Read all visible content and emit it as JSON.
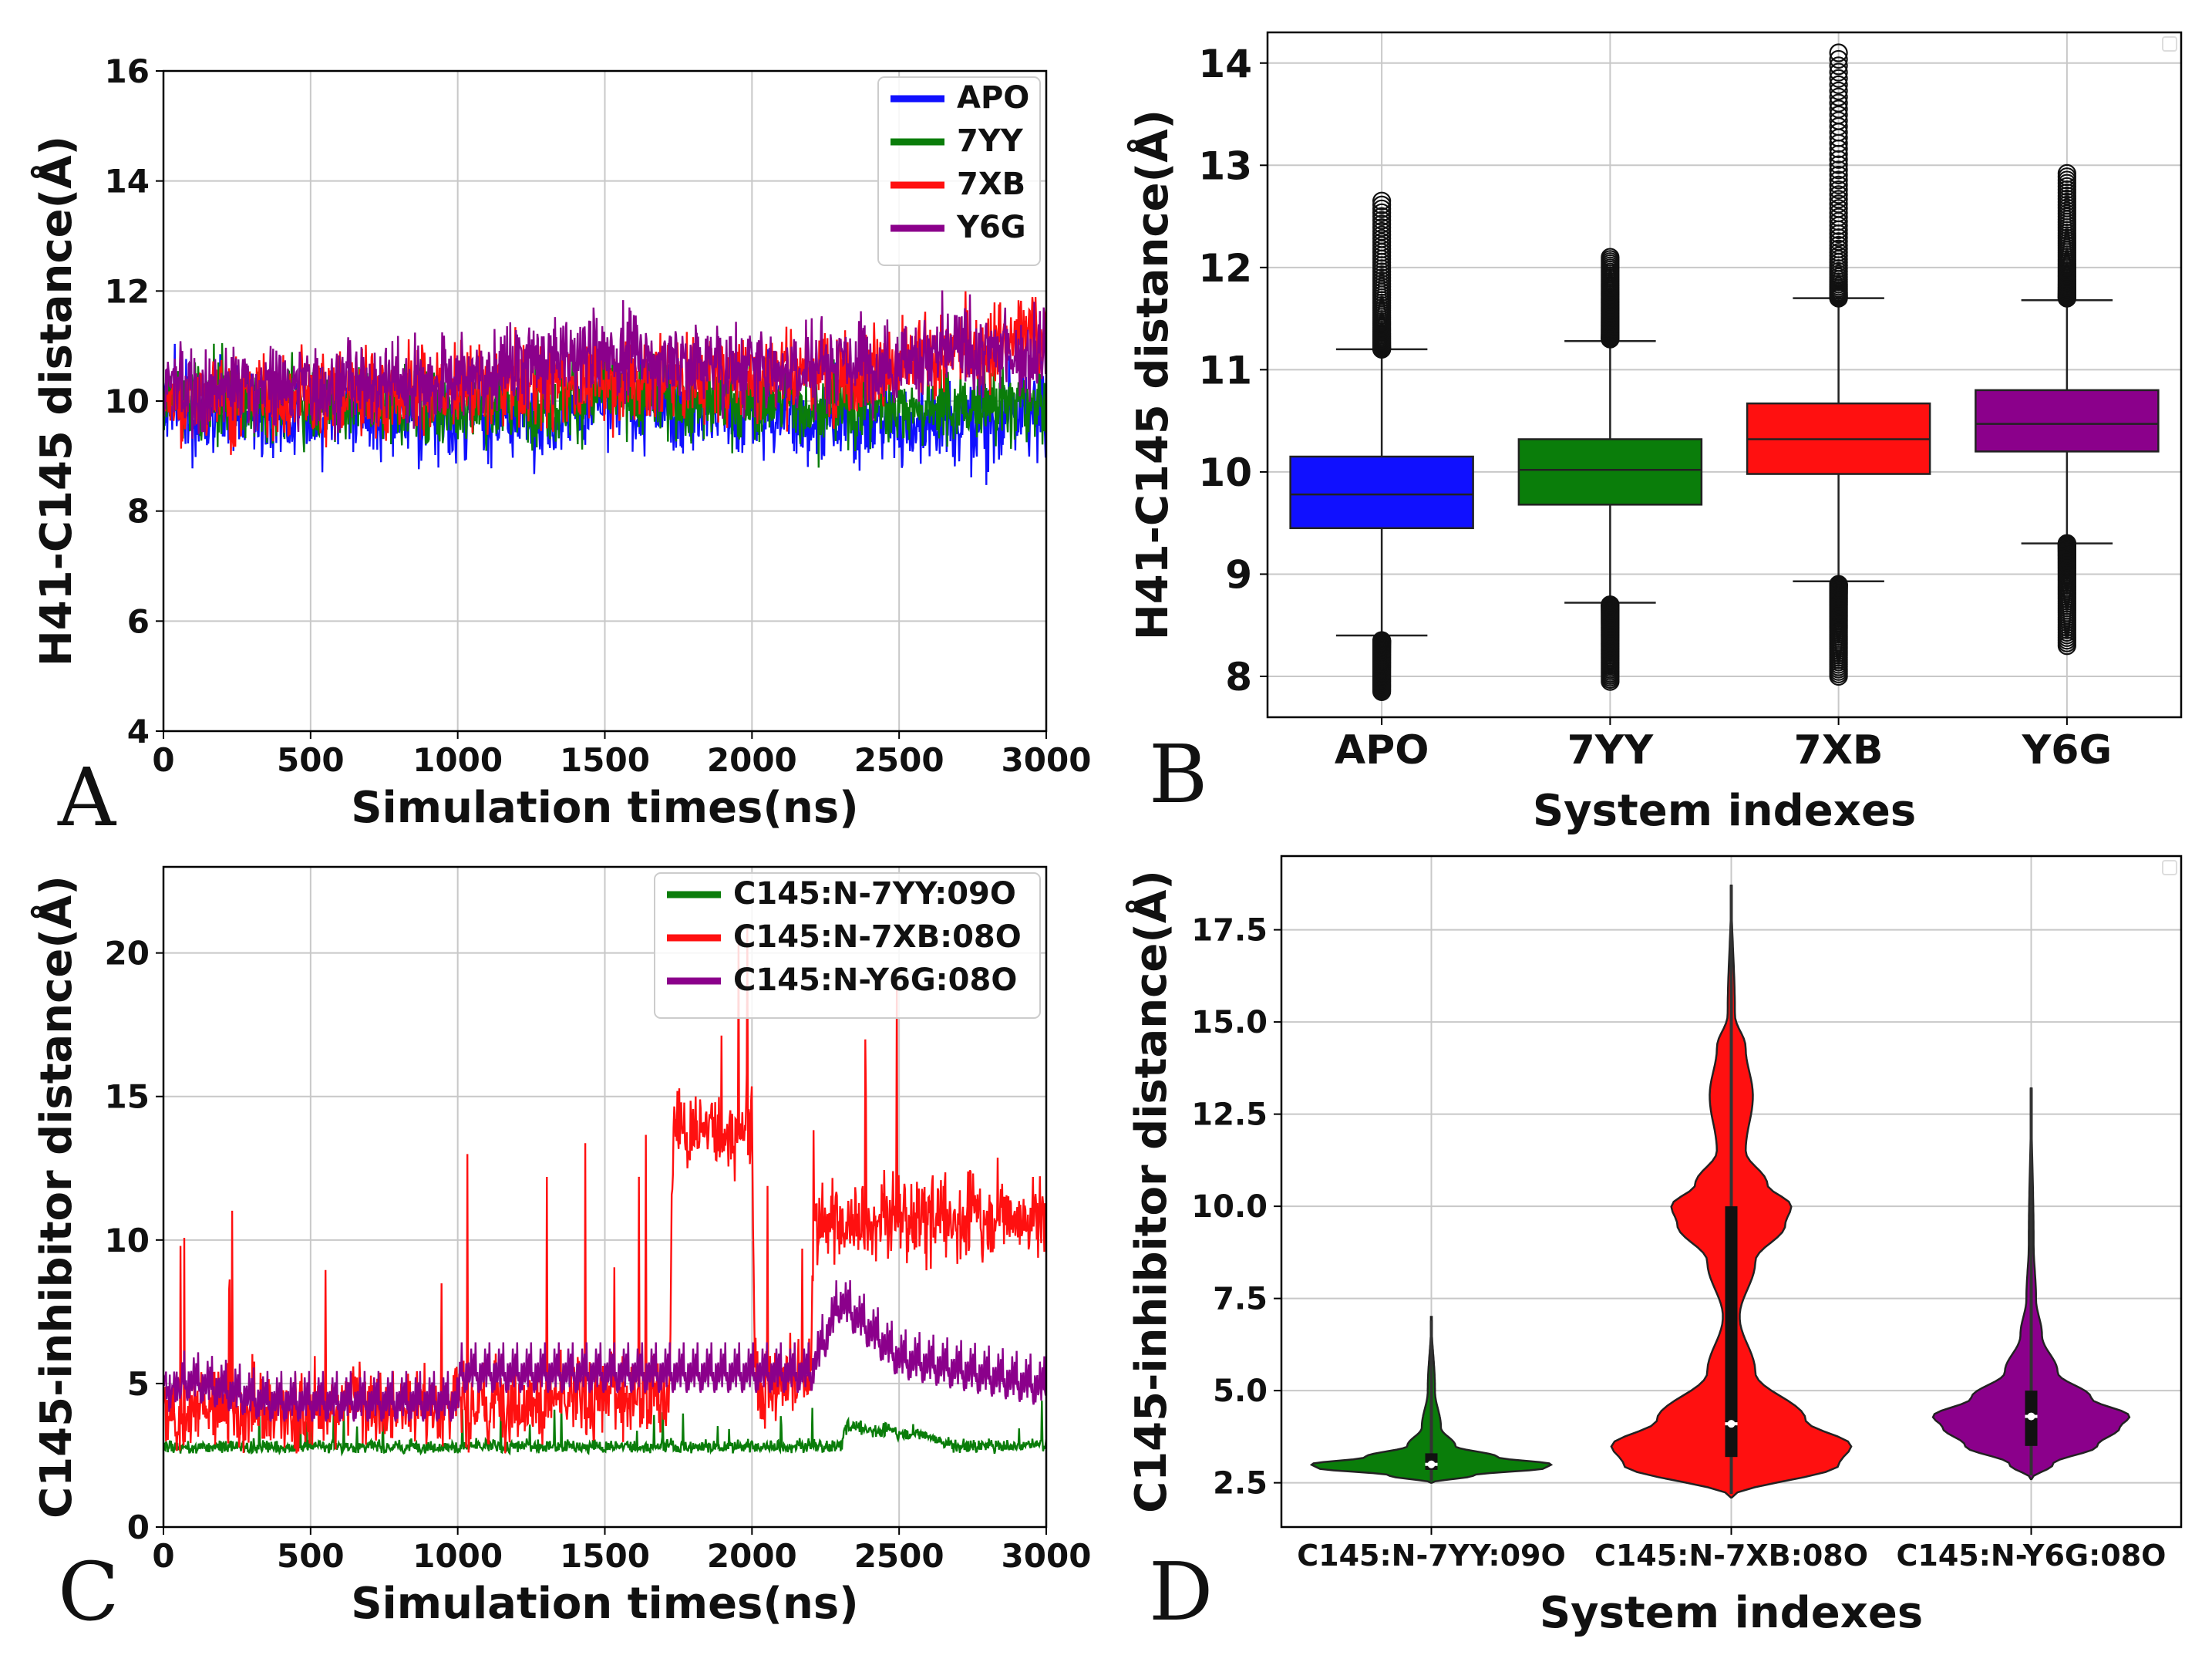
{
  "figure": {
    "colors": {
      "apo": "#1010ff",
      "yy7": "#0a7d0a",
      "xb7": "#ff1010",
      "y6g": "#8b008b",
      "grid": "#c8c8c8"
    }
  },
  "chart_data": [
    {
      "panel": "A",
      "type": "line",
      "xlabel": "Simulation times(ns)",
      "ylabel": "H41-C145 distance(Å)",
      "xlim": [
        0,
        3000
      ],
      "ylim": [
        4,
        16
      ],
      "xticks": [
        "0",
        "500",
        "1000",
        "1500",
        "2000",
        "2500",
        "3000"
      ],
      "yticks": [
        "4",
        "6",
        "8",
        "10",
        "12",
        "14",
        "16"
      ],
      "legend_position": "top-right",
      "series": [
        {
          "name": "APO",
          "color": "#1010ff",
          "mean_segments": [
            [
              0,
              9.9
            ],
            [
              500,
              9.8
            ],
            [
              1000,
              9.7
            ],
            [
              1500,
              9.9
            ],
            [
              2000,
              9.8
            ],
            [
              2500,
              9.6
            ],
            [
              3000,
              9.7
            ]
          ],
          "spread": 1.0
        },
        {
          "name": "7YY",
          "color": "#0a7d0a",
          "mean_segments": [
            [
              0,
              10.0
            ],
            [
              500,
              10.0
            ],
            [
              1000,
              9.9
            ],
            [
              1500,
              10.1
            ],
            [
              2000,
              10.0
            ],
            [
              2500,
              9.9
            ],
            [
              3000,
              9.9
            ]
          ],
          "spread": 0.9
        },
        {
          "name": "7XB",
          "color": "#ff1010",
          "mean_segments": [
            [
              0,
              10.0
            ],
            [
              500,
              10.1
            ],
            [
              1000,
              10.2
            ],
            [
              1500,
              10.4
            ],
            [
              2000,
              10.5
            ],
            [
              2500,
              10.6
            ],
            [
              3000,
              11.3
            ]
          ],
          "spread": 1.0
        },
        {
          "name": "Y6G",
          "color": "#8b008b",
          "mean_segments": [
            [
              0,
              10.2
            ],
            [
              500,
              10.3
            ],
            [
              1000,
              10.4
            ],
            [
              1500,
              10.9
            ],
            [
              2000,
              10.6
            ],
            [
              2500,
              10.8
            ],
            [
              3000,
              10.9
            ]
          ],
          "spread": 1.0
        }
      ]
    },
    {
      "panel": "B",
      "type": "box",
      "xlabel": "System indexes",
      "ylabel": "H41-C145 distance(Å)",
      "ylim": [
        7.6,
        14.3
      ],
      "yticks": [
        "8",
        "9",
        "10",
        "11",
        "12",
        "13",
        "14"
      ],
      "categories": [
        "APO",
        "7YY",
        "7XB",
        "Y6G"
      ],
      "boxes": [
        {
          "name": "APO",
          "color": "#1010ff",
          "q1": 9.45,
          "median": 9.78,
          "q3": 10.15,
          "whisker_low": 8.4,
          "whisker_high": 11.2,
          "outlier_low": [
            7.85,
            8.35
          ],
          "outlier_high": [
            11.2,
            12.65
          ]
        },
        {
          "name": "7YY",
          "color": "#0a7d0a",
          "q1": 9.68,
          "median": 10.02,
          "q3": 10.32,
          "whisker_low": 8.72,
          "whisker_high": 11.28,
          "outlier_low": [
            7.95,
            8.7
          ],
          "outlier_high": [
            11.3,
            12.1
          ]
        },
        {
          "name": "7XB",
          "color": "#ff1010",
          "q1": 9.98,
          "median": 10.32,
          "q3": 10.67,
          "whisker_low": 8.93,
          "whisker_high": 11.7,
          "outlier_low": [
            8.0,
            8.9
          ],
          "outlier_high": [
            11.7,
            14.1
          ]
        },
        {
          "name": "Y6G",
          "color": "#8b008b",
          "q1": 10.2,
          "median": 10.47,
          "q3": 10.8,
          "whisker_low": 9.3,
          "whisker_high": 11.68,
          "outlier_low": [
            8.3,
            9.3
          ],
          "outlier_high": [
            11.7,
            12.92
          ]
        }
      ]
    },
    {
      "panel": "C",
      "type": "line",
      "xlabel": "Simulation times(ns)",
      "ylabel": "C145-inhibitor distance(Å)",
      "xlim": [
        0,
        3000
      ],
      "ylim": [
        0,
        23
      ],
      "xticks": [
        "0",
        "500",
        "1000",
        "1500",
        "2000",
        "2500",
        "3000"
      ],
      "yticks": [
        "0",
        "5",
        "10",
        "15",
        "20"
      ],
      "legend_position": "top-right",
      "series": [
        {
          "name": "C145:N-7YY:09O",
          "color": "#0a7d0a",
          "mean_segments": [
            [
              0,
              2.8
            ],
            [
              2300,
              2.8
            ],
            [
              2320,
              3.5
            ],
            [
              2600,
              3.2
            ],
            [
              2700,
              2.8
            ],
            [
              3000,
              2.9
            ]
          ],
          "spread": 0.3
        },
        {
          "name": "C145:N-7XB:08O",
          "color": "#ff1010",
          "mean_segments": [
            [
              0,
              4.0
            ],
            [
              1720,
              4.5
            ],
            [
              1730,
              13.8
            ],
            [
              2000,
              13.8
            ],
            [
              2010,
              4.8
            ],
            [
              2200,
              5.5
            ],
            [
              2210,
              10.5
            ],
            [
              3000,
              11.0
            ]
          ],
          "spread": 1.8
        },
        {
          "name": "C145:N-Y6G:08O",
          "color": "#8b008b",
          "mean_segments": [
            [
              0,
              5.0
            ],
            [
              350,
              4.0
            ],
            [
              1000,
              4.0
            ],
            [
              1010,
              5.0
            ],
            [
              2200,
              5.0
            ],
            [
              2300,
              7.5
            ],
            [
              2500,
              5.5
            ],
            [
              3000,
              4.5
            ]
          ],
          "spread": 1.3
        }
      ]
    },
    {
      "panel": "D",
      "type": "violin",
      "xlabel": "System indexes",
      "ylabel": "C145-inhibitor distance(Å)",
      "ylim": [
        1.3,
        19.5
      ],
      "yticks": [
        "2.5",
        "5.0",
        "7.5",
        "10.0",
        "12.5",
        "15.0",
        "17.5"
      ],
      "categories": [
        "C145:N-7YY:09O",
        "C145:N-7XB:08O",
        "C145:N-Y6G:08O"
      ],
      "violins": [
        {
          "name": "C145:N-7YY:09O",
          "color": "#0a7d0a",
          "profile": [
            [
              2.5,
              0.0
            ],
            [
              2.7,
              0.35
            ],
            [
              2.9,
              0.95
            ],
            [
              3.0,
              1.0
            ],
            [
              3.2,
              0.55
            ],
            [
              3.5,
              0.2
            ],
            [
              4.0,
              0.08
            ],
            [
              5.0,
              0.03
            ],
            [
              7.0,
              0.0
            ]
          ],
          "q1": 2.85,
          "median": 3.0,
          "q3": 3.3,
          "min": 2.55,
          "max": 6.9
        },
        {
          "name": "C145:N-7XB:08O",
          "color": "#ff1010",
          "profile": [
            [
              2.1,
              0.0
            ],
            [
              3.0,
              0.9
            ],
            [
              3.5,
              1.0
            ],
            [
              4.2,
              0.62
            ],
            [
              5.5,
              0.2
            ],
            [
              7.0,
              0.07
            ],
            [
              8.5,
              0.2
            ],
            [
              9.5,
              0.45
            ],
            [
              10.0,
              0.5
            ],
            [
              10.6,
              0.3
            ],
            [
              11.5,
              0.12
            ],
            [
              13.0,
              0.18
            ],
            [
              14.3,
              0.12
            ],
            [
              15.2,
              0.03
            ],
            [
              18.7,
              0.0
            ]
          ],
          "q1": 3.2,
          "median": 4.1,
          "q3": 10.0,
          "min": 2.2,
          "max": 18.7
        },
        {
          "name": "C145:N-Y6G:08O",
          "color": "#8b008b",
          "profile": [
            [
              2.6,
              0.0
            ],
            [
              3.0,
              0.18
            ],
            [
              3.5,
              0.55
            ],
            [
              4.0,
              0.74
            ],
            [
              4.3,
              0.82
            ],
            [
              4.8,
              0.5
            ],
            [
              5.5,
              0.22
            ],
            [
              6.5,
              0.09
            ],
            [
              7.5,
              0.04
            ],
            [
              9.0,
              0.02
            ],
            [
              13.2,
              0.0
            ]
          ],
          "q1": 3.5,
          "median": 4.3,
          "q3": 5.0,
          "min": 2.7,
          "max": 13.2
        }
      ]
    }
  ]
}
